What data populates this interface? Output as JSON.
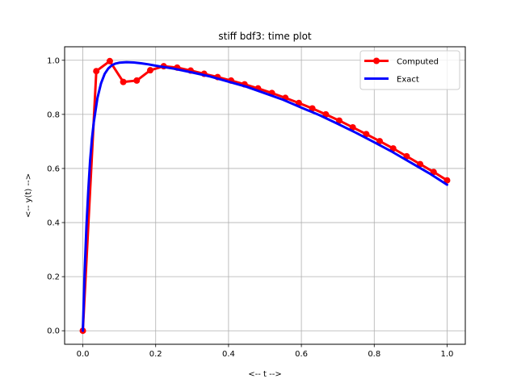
{
  "chart_data": {
    "type": "line",
    "title": "stiff bdf3: time plot",
    "xlabel": "<-- t -->",
    "ylabel": "<-- y(t) -->",
    "xlim": [
      -0.05,
      1.05
    ],
    "ylim": [
      -0.05,
      1.05
    ],
    "xticks": [
      "0.0",
      "0.2",
      "0.4",
      "0.6",
      "0.8",
      "1.0"
    ],
    "xtick_values": [
      0,
      0.2,
      0.4,
      0.6,
      0.8,
      1.0
    ],
    "yticks": [
      "0.0",
      "0.2",
      "0.4",
      "0.6",
      "0.8",
      "1.0"
    ],
    "ytick_values": [
      0,
      0.2,
      0.4,
      0.6,
      0.8,
      1.0
    ],
    "grid": true,
    "legend_position": "top-right",
    "series": [
      {
        "name": "Computed",
        "color": "#ff0000",
        "marker": "circle",
        "x": [
          0.0,
          0.037,
          0.074,
          0.111,
          0.148,
          0.185,
          0.222,
          0.259,
          0.296,
          0.333,
          0.37,
          0.407,
          0.444,
          0.481,
          0.519,
          0.556,
          0.593,
          0.63,
          0.667,
          0.704,
          0.741,
          0.778,
          0.815,
          0.852,
          0.889,
          0.926,
          0.963,
          1.0
        ],
        "y": [
          0.0,
          0.96,
          0.997,
          0.92,
          0.925,
          0.963,
          0.978,
          0.973,
          0.962,
          0.95,
          0.938,
          0.925,
          0.911,
          0.896,
          0.879,
          0.861,
          0.842,
          0.822,
          0.8,
          0.777,
          0.752,
          0.727,
          0.701,
          0.674,
          0.645,
          0.616,
          0.587,
          0.556
        ]
      },
      {
        "name": "Exact",
        "color": "#0000ff",
        "marker": "none",
        "x": [
          0.0,
          0.005,
          0.01,
          0.015,
          0.02,
          0.025,
          0.03,
          0.04,
          0.05,
          0.06,
          0.07,
          0.08,
          0.09,
          0.1,
          0.12,
          0.14,
          0.16,
          0.18,
          0.2,
          0.25,
          0.3,
          0.35,
          0.4,
          0.45,
          0.5,
          0.55,
          0.6,
          0.65,
          0.7,
          0.75,
          0.8,
          0.85,
          0.9,
          0.95,
          1.0
        ],
        "y": [
          0.0,
          0.22,
          0.39,
          0.52,
          0.63,
          0.71,
          0.77,
          0.86,
          0.915,
          0.95,
          0.97,
          0.982,
          0.988,
          0.991,
          0.993,
          0.992,
          0.989,
          0.985,
          0.98,
          0.969,
          0.955,
          0.94,
          0.921,
          0.902,
          0.878,
          0.854,
          0.825,
          0.797,
          0.765,
          0.732,
          0.697,
          0.661,
          0.622,
          0.583,
          0.54
        ]
      }
    ]
  }
}
